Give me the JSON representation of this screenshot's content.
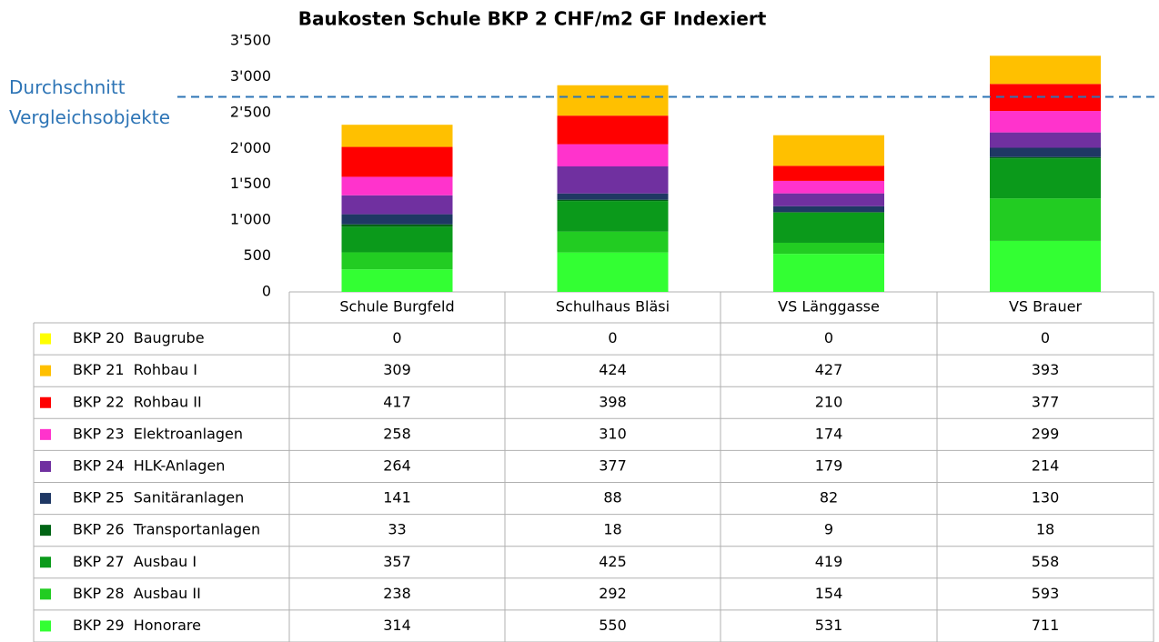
{
  "chart_data": {
    "type": "bar",
    "stacked": true,
    "title": "Baukosten  Schule BKP 2 CHF/m2 GF Indexiert",
    "categories": [
      "Schule Burgfeld",
      "Schulhaus Bläsi",
      "VS Länggasse",
      "VS Brauer"
    ],
    "series": [
      {
        "name": "BKP 20  Baugrube",
        "color": "#ffff00",
        "values": [
          0,
          0,
          0,
          0
        ]
      },
      {
        "name": "BKP 21  Rohbau I",
        "color": "#ffc000",
        "values": [
          309,
          424,
          427,
          393
        ]
      },
      {
        "name": "BKP 22  Rohbau II",
        "color": "#ff0000",
        "values": [
          417,
          398,
          210,
          377
        ]
      },
      {
        "name": "BKP 23  Elektroanlagen",
        "color": "#ff33cc",
        "values": [
          258,
          310,
          174,
          299
        ]
      },
      {
        "name": "BKP 24  HLK-Anlagen",
        "color": "#7030a0",
        "values": [
          264,
          377,
          179,
          214
        ]
      },
      {
        "name": "BKP 25  Sanitäranlagen",
        "color": "#1f3864",
        "values": [
          141,
          88,
          82,
          130
        ]
      },
      {
        "name": "BKP 26  Transportanlagen",
        "color": "#006414",
        "values": [
          33,
          18,
          9,
          18
        ]
      },
      {
        "name": "BKP 27  Ausbau I",
        "color": "#0b9a1b",
        "values": [
          357,
          425,
          419,
          558
        ]
      },
      {
        "name": "BKP 28  Ausbau II",
        "color": "#22cc22",
        "values": [
          238,
          292,
          154,
          593
        ]
      },
      {
        "name": "BKP 29  Honorare",
        "color": "#33ff33",
        "values": [
          314,
          550,
          531,
          711
        ]
      }
    ],
    "ylim": [
      0,
      3500
    ],
    "yticks": [
      0,
      500,
      {
        "value": 1000,
        "label": "1'000"
      },
      {
        "value": 1500,
        "label": "1'500"
      },
      {
        "value": 2000,
        "label": "2'000"
      },
      {
        "value": 2500,
        "label": "2'500"
      },
      {
        "value": 3000,
        "label": "3'000"
      },
      {
        "value": 3500,
        "label": "3'500"
      }
    ],
    "reference_line": {
      "label": "Durchschnitt Vergleichsobjekte",
      "value": 2720,
      "color": "#2e75b6"
    }
  }
}
